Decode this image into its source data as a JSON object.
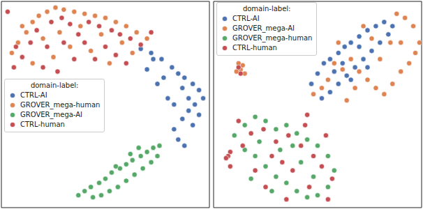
{
  "chart_data": [
    {
      "type": "scatter",
      "xlim": [
        0,
        100
      ],
      "ylim": [
        0,
        100
      ],
      "tick_labels": false,
      "legend": "center left",
      "legend_title": "domain-label:",
      "series": [
        {
          "name": "CTRL-AI",
          "color": "#4c72b0",
          "values": [
            [
              67,
              77
            ],
            [
              72,
              75
            ],
            [
              77,
              72
            ],
            [
              82,
              68
            ],
            [
              85,
              65
            ],
            [
              88,
              63
            ],
            [
              92,
              60
            ],
            [
              95,
              57
            ],
            [
              97,
              53
            ],
            [
              93,
              50
            ],
            [
              90,
              47
            ],
            [
              87,
              43
            ],
            [
              83,
              38
            ],
            [
              85,
              33
            ],
            [
              88,
              30
            ],
            [
              80,
              53
            ],
            [
              75,
              60
            ],
            [
              70,
              67
            ],
            [
              78,
              63
            ],
            [
              83,
              50
            ],
            [
              90,
              53
            ],
            [
              95,
              45
            ],
            [
              73,
              72
            ],
            [
              87,
              58
            ],
            [
              92,
              40
            ]
          ]
        },
        {
          "name": "GROVER_mega-human",
          "color": "#dd8452",
          "values": [
            [
              5,
              75
            ],
            [
              8,
              80
            ],
            [
              12,
              85
            ],
            [
              15,
              90
            ],
            [
              18,
              93
            ],
            [
              22,
              95
            ],
            [
              26,
              97
            ],
            [
              30,
              96
            ],
            [
              35,
              95
            ],
            [
              40,
              94
            ],
            [
              45,
              93
            ],
            [
              50,
              92
            ],
            [
              55,
              90
            ],
            [
              60,
              88
            ],
            [
              65,
              85
            ],
            [
              70,
              82
            ],
            [
              20,
              82
            ],
            [
              28,
              85
            ],
            [
              38,
              88
            ],
            [
              48,
              84
            ],
            [
              58,
              80
            ],
            [
              33,
              78
            ],
            [
              43,
              76
            ],
            [
              25,
              73
            ],
            [
              63,
              75
            ],
            [
              52,
              70
            ],
            [
              15,
              70
            ],
            [
              10,
              88
            ]
          ]
        },
        {
          "name": "GROVER_mega-AI",
          "color": "#55a868",
          "values": [
            [
              37,
              6
            ],
            [
              40,
              8
            ],
            [
              43,
              10
            ],
            [
              47,
              12
            ],
            [
              50,
              14
            ],
            [
              53,
              17
            ],
            [
              57,
              19
            ],
            [
              60,
              21
            ],
            [
              63,
              23
            ],
            [
              67,
              25
            ],
            [
              70,
              27
            ],
            [
              73,
              29
            ],
            [
              75,
              25
            ],
            [
              72,
              22
            ],
            [
              68,
              19
            ],
            [
              64,
              16
            ],
            [
              60,
              13
            ],
            [
              56,
              10
            ],
            [
              52,
              8
            ],
            [
              48,
              6
            ],
            [
              44,
              5
            ],
            [
              62,
              26
            ],
            [
              55,
              20
            ],
            [
              66,
              29
            ],
            [
              76,
              30
            ]
          ]
        },
        {
          "name": "CTRL-human",
          "color": "#c44e52",
          "values": [
            [
              7,
              78
            ],
            [
              10,
              73
            ],
            [
              14,
              80
            ],
            [
              17,
              86
            ],
            [
              24,
              90
            ],
            [
              29,
              92
            ],
            [
              33,
              89
            ],
            [
              37,
              84
            ],
            [
              42,
              90
            ],
            [
              47,
              88
            ],
            [
              53,
              86
            ],
            [
              57,
              84
            ],
            [
              62,
              82
            ],
            [
              67,
              79
            ],
            [
              72,
              85
            ],
            [
              22,
              78
            ],
            [
              30,
              80
            ],
            [
              40,
              80
            ],
            [
              45,
              72
            ],
            [
              50,
              78
            ],
            [
              55,
              74
            ],
            [
              35,
              72
            ],
            [
              20,
              68
            ],
            [
              60,
              70
            ],
            [
              6,
              68
            ],
            [
              27,
              66
            ],
            [
              3,
              95
            ]
          ]
        }
      ]
    },
    {
      "type": "scatter",
      "xlim": [
        0,
        100
      ],
      "ylim": [
        0,
        100
      ],
      "tick_labels": false,
      "legend": "upper left",
      "legend_title": "domain-label:",
      "series": [
        {
          "name": "CTRL-AI",
          "color": "#4c72b0",
          "values": [
            [
              47,
              60
            ],
            [
              50,
              65
            ],
            [
              53,
              70
            ],
            [
              56,
              72
            ],
            [
              60,
              75
            ],
            [
              63,
              78
            ],
            [
              66,
              80
            ],
            [
              70,
              83
            ],
            [
              74,
              86
            ],
            [
              78,
              88
            ],
            [
              82,
              90
            ],
            [
              86,
              88
            ],
            [
              84,
              84
            ],
            [
              80,
              80
            ],
            [
              76,
              76
            ],
            [
              72,
              72
            ],
            [
              68,
              68
            ],
            [
              64,
              64
            ],
            [
              60,
              60
            ],
            [
              56,
              56
            ],
            [
              52,
              53
            ],
            [
              58,
              66
            ],
            [
              62,
              70
            ],
            [
              66,
              62
            ],
            [
              70,
              78
            ],
            [
              74,
              68
            ]
          ]
        },
        {
          "name": "GROVER_mega-AI",
          "color": "#dd8452",
          "values": [
            [
              48,
              55
            ],
            [
              52,
              58
            ],
            [
              55,
              62
            ],
            [
              58,
              70
            ],
            [
              62,
              67
            ],
            [
              66,
              72
            ],
            [
              70,
              66
            ],
            [
              74,
              62
            ],
            [
              78,
              58
            ],
            [
              82,
              55
            ],
            [
              86,
              60
            ],
            [
              90,
              66
            ],
            [
              94,
              70
            ],
            [
              97,
              75
            ],
            [
              99,
              80
            ],
            [
              96,
              88
            ],
            [
              92,
              92
            ],
            [
              88,
              94
            ],
            [
              85,
              80
            ],
            [
              80,
              72
            ],
            [
              76,
              82
            ],
            [
              72,
              88
            ],
            [
              68,
              58
            ],
            [
              64,
              52
            ],
            [
              90,
              80
            ],
            [
              60,
              80
            ],
            [
              13,
              67
            ],
            [
              14,
              69
            ],
            [
              11,
              66
            ],
            [
              12,
              70
            ],
            [
              15,
              65
            ]
          ]
        },
        {
          "name": "GROVER_mega-human",
          "color": "#55a868",
          "values": [
            [
              10,
              35
            ],
            [
              15,
              40
            ],
            [
              20,
              44
            ],
            [
              25,
              42
            ],
            [
              30,
              38
            ],
            [
              35,
              40
            ],
            [
              40,
              36
            ],
            [
              45,
              33
            ],
            [
              50,
              30
            ],
            [
              55,
              25
            ],
            [
              58,
              18
            ],
            [
              55,
              10
            ],
            [
              50,
              6
            ],
            [
              45,
              5
            ],
            [
              40,
              8
            ],
            [
              35,
              12
            ],
            [
              30,
              15
            ],
            [
              25,
              20
            ],
            [
              20,
              25
            ],
            [
              15,
              28
            ],
            [
              22,
              32
            ],
            [
              32,
              28
            ],
            [
              42,
              22
            ],
            [
              48,
              15
            ],
            [
              38,
              30
            ],
            [
              28,
              8
            ],
            [
              18,
              14
            ]
          ]
        },
        {
          "name": "CTRL-human",
          "color": "#c44e52",
          "values": [
            [
              12,
              42
            ],
            [
              18,
              36
            ],
            [
              24,
              38
            ],
            [
              30,
              32
            ],
            [
              36,
              35
            ],
            [
              42,
              30
            ],
            [
              48,
              25
            ],
            [
              52,
              20
            ],
            [
              57,
              14
            ],
            [
              46,
              10
            ],
            [
              38,
              18
            ],
            [
              28,
              25
            ],
            [
              20,
              18
            ],
            [
              14,
              30
            ],
            [
              8,
              27
            ],
            [
              33,
              22
            ],
            [
              44,
              40
            ],
            [
              25,
              10
            ],
            [
              35,
              4
            ],
            [
              54,
              35
            ],
            [
              7,
              25
            ],
            [
              12,
              68
            ],
            [
              13,
              65
            ],
            [
              8,
              20
            ],
            [
              6,
              24
            ],
            [
              55,
              4
            ],
            [
              45,
              45
            ]
          ]
        }
      ]
    }
  ]
}
